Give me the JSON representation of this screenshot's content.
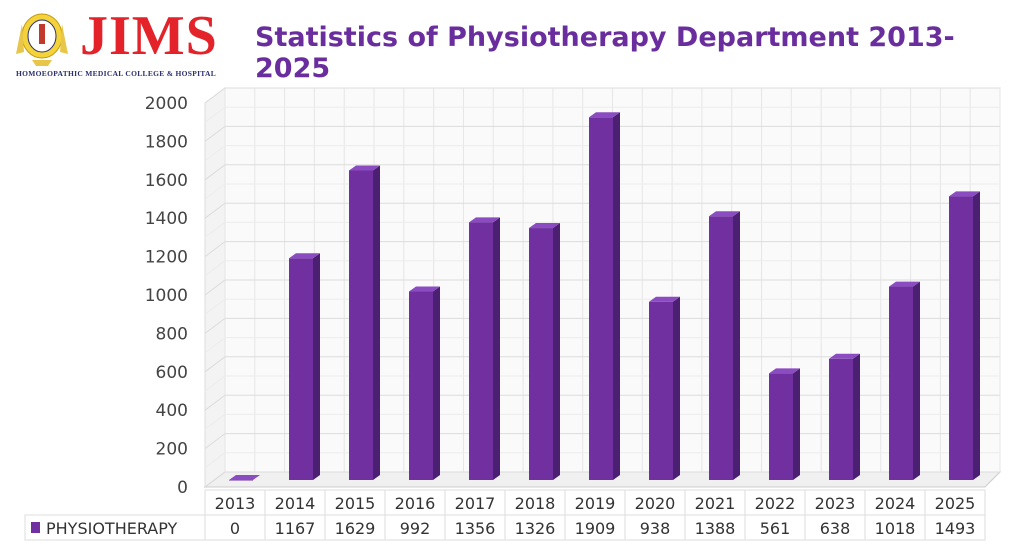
{
  "header": {
    "logo_text": "JIMS",
    "logo_subtitle": "HOMOEOPATHIC MEDICAL COLLEGE & HOSPITAL",
    "title": "Statistics of Physiotherapy Department 2013-2025"
  },
  "chart_data": {
    "type": "bar",
    "title": "Statistics of Physiotherapy Department 2013-2025",
    "categories": [
      "2013",
      "2014",
      "2015",
      "2016",
      "2017",
      "2018",
      "2019",
      "2020",
      "2021",
      "2022",
      "2023",
      "2024",
      "2025"
    ],
    "series": [
      {
        "name": "PHYSIOTHERAPY",
        "values": [
          0,
          1167,
          1629,
          992,
          1356,
          1326,
          1909,
          938,
          1388,
          561,
          638,
          1018,
          1493
        ],
        "color": "#7030a0"
      }
    ],
    "ylim": [
      0,
      2000
    ],
    "yticks": [
      0,
      200,
      400,
      600,
      800,
      1000,
      1200,
      1400,
      1600,
      1800,
      2000
    ],
    "grid": true,
    "style": "3d",
    "legend": "data-table-below"
  }
}
